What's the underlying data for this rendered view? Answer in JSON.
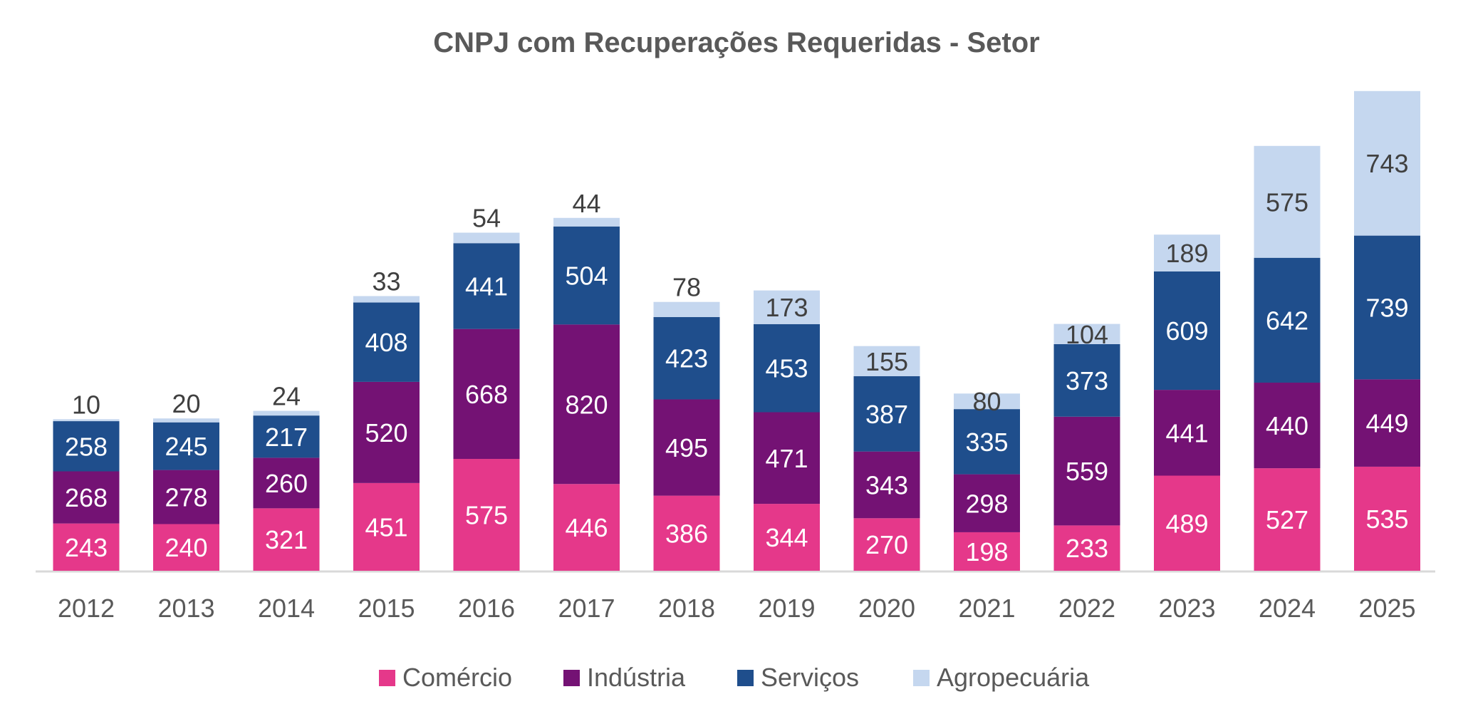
{
  "chart_data": {
    "type": "bar",
    "stacked": true,
    "title": "CNPJ com Recuperações Requeridas - Setor",
    "xlabel": "",
    "ylabel": "",
    "categories": [
      "2012",
      "2013",
      "2014",
      "2015",
      "2016",
      "2017",
      "2018",
      "2019",
      "2020",
      "2021",
      "2022",
      "2023",
      "2024",
      "2025"
    ],
    "series": [
      {
        "name": "Comércio",
        "color": "#E5388A",
        "values": [
          243,
          240,
          321,
          451,
          575,
          446,
          386,
          344,
          270,
          198,
          233,
          489,
          527,
          535
        ]
      },
      {
        "name": "Indústria",
        "color": "#741274",
        "values": [
          268,
          278,
          260,
          520,
          668,
          820,
          495,
          471,
          343,
          298,
          559,
          441,
          440,
          449
        ]
      },
      {
        "name": "Serviços",
        "color": "#1F4E8C",
        "values": [
          258,
          245,
          217,
          408,
          441,
          504,
          423,
          453,
          387,
          335,
          373,
          609,
          642,
          739
        ]
      },
      {
        "name": "Agropecuária",
        "color": "#C5D7EF",
        "values": [
          10,
          20,
          24,
          33,
          54,
          44,
          78,
          173,
          155,
          80,
          104,
          189,
          575,
          743
        ]
      }
    ],
    "data_labels": true,
    "grid": false,
    "legend_position": "bottom"
  }
}
